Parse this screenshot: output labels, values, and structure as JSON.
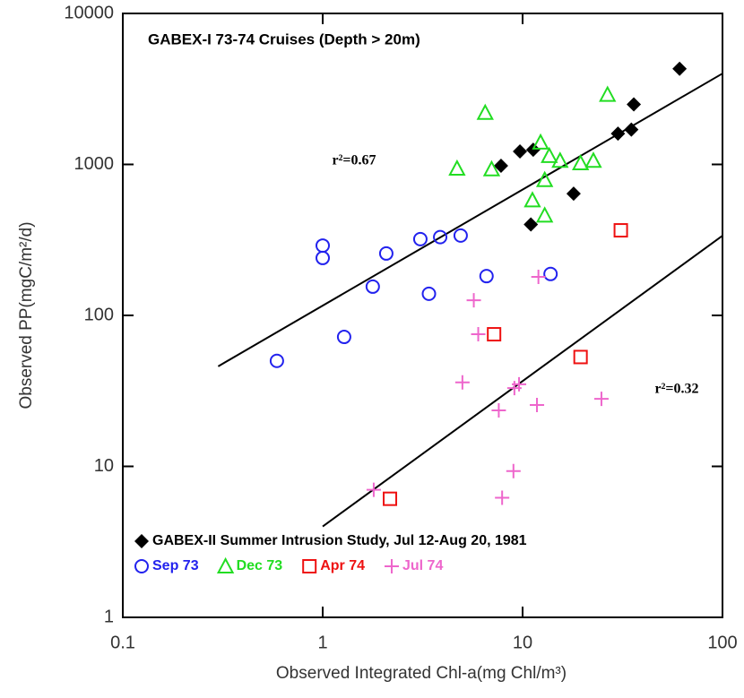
{
  "chart_data": {
    "type": "scatter",
    "title": "GABEX-I 73-74 Cruises (Depth > 20m)",
    "x_label": "Observed Integrated Chl-a(mg Chl/m³)",
    "y_label": "Observed PP(mgC/m²/d)",
    "x_log": true,
    "y_log": true,
    "xlim": [
      0.1,
      100
    ],
    "ylim": [
      1,
      10000
    ],
    "xticks": [
      0.1,
      1,
      10,
      100
    ],
    "yticks": [
      1,
      10,
      100,
      1000,
      10000
    ],
    "legend": "lower left",
    "series": [
      {
        "name": "GABEX-II Summer Intrusion Study, Jul 12-Aug 20, 1981",
        "color": "#000000",
        "marker": "diamond",
        "x": [
          61,
          36,
          35,
          30,
          7.8,
          9.7,
          11.3,
          18,
          11
        ],
        "values": [
          4300,
          2500,
          1700,
          1600,
          980,
          1220,
          1250,
          640,
          400
        ]
      },
      {
        "name": "Sep 73",
        "color": "#2222ee",
        "marker": "circle",
        "x": [
          0.59,
          1,
          1,
          1.28,
          1.78,
          2.08,
          3.08,
          3.87,
          4.9,
          3.4,
          6.6,
          13.8
        ],
        "values": [
          50,
          290,
          240,
          72,
          155,
          257,
          320,
          330,
          338,
          139,
          182,
          188
        ]
      },
      {
        "name": "Dec 73",
        "color": "#22dd22",
        "marker": "triangle",
        "x": [
          26.6,
          6.5,
          4.7,
          7,
          12.3,
          13.6,
          15.4,
          19.5,
          22.6,
          12.9,
          11.2,
          12.9
        ],
        "values": [
          2900,
          2200,
          940,
          930,
          1400,
          1140,
          1060,
          1020,
          1060,
          790,
          580,
          460
        ]
      },
      {
        "name": "Apr 74",
        "color": "#ee1111",
        "marker": "square",
        "x": [
          31,
          7.2,
          19.5,
          2.17
        ],
        "values": [
          366,
          75,
          53,
          6.1
        ]
      },
      {
        "name": "Jul 74",
        "color": "#ee66cc",
        "marker": "plus",
        "x": [
          12,
          5.7,
          6,
          5,
          7.6,
          9.1,
          9.6,
          11.8,
          24.8,
          9,
          7.9,
          1.8
        ],
        "values": [
          180,
          126,
          75,
          36,
          23.5,
          33,
          35,
          25.5,
          28,
          9.3,
          6.2,
          7
        ]
      }
    ],
    "fit_lines": [
      {
        "label": "r²=0.67",
        "x": [
          0.3,
          100
        ],
        "y": [
          46,
          4000
        ]
      },
      {
        "label": "r²=0.32",
        "x": [
          1,
          100
        ],
        "y": [
          4,
          337
        ]
      }
    ]
  }
}
